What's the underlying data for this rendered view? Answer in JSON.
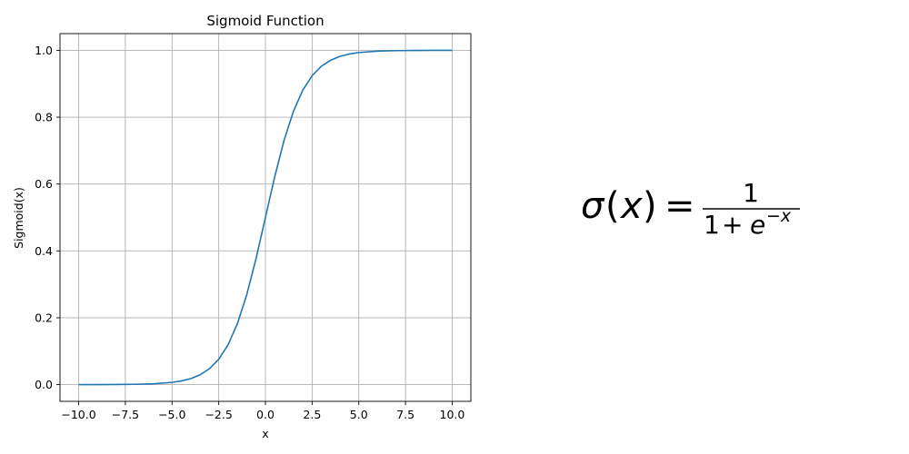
{
  "chart_data": {
    "type": "line",
    "title": "Sigmoid Function",
    "xlabel": "x",
    "ylabel": "Sigmoid(x)",
    "xlim": [
      -11,
      11
    ],
    "ylim": [
      -0.05,
      1.05
    ],
    "xticks": [
      -10,
      -7.5,
      -5,
      -2.5,
      0,
      2.5,
      5,
      7.5,
      10
    ],
    "xtick_labels": [
      "−10.0",
      "−7.5",
      "−5.0",
      "−2.5",
      "0.0",
      "2.5",
      "5.0",
      "7.5",
      "10.0"
    ],
    "yticks": [
      0,
      0.2,
      0.4,
      0.6,
      0.8,
      1.0
    ],
    "ytick_labels": [
      "0.0",
      "0.2",
      "0.4",
      "0.6",
      "0.8",
      "1.0"
    ],
    "grid": true,
    "line_color": "#1f77b4",
    "series": [
      {
        "x": [
          -10,
          -9,
          -8,
          -7,
          -6,
          -5,
          -4.5,
          -4,
          -3.5,
          -3,
          -2.5,
          -2,
          -1.5,
          -1,
          -0.5,
          0,
          0.5,
          1,
          1.5,
          2,
          2.5,
          3,
          3.5,
          4,
          4.5,
          5,
          6,
          7,
          8,
          9,
          10
        ],
        "y": [
          5e-05,
          0.00012,
          0.00034,
          0.00091,
          0.00247,
          0.00669,
          0.01099,
          0.01799,
          0.02931,
          0.04743,
          0.07586,
          0.1192,
          0.18243,
          0.26894,
          0.37754,
          0.5,
          0.62246,
          0.73106,
          0.81757,
          0.8808,
          0.92414,
          0.95257,
          0.97069,
          0.98201,
          0.98901,
          0.99331,
          0.99753,
          0.99909,
          0.99966,
          0.99988,
          0.99995
        ]
      }
    ]
  },
  "equation": {
    "sigma": "σ",
    "open_paren": "(",
    "x": "x",
    "close_paren": ")",
    "equals": "=",
    "numerator": "1",
    "denom_one": "1",
    "denom_plus": "+",
    "denom_e": "e",
    "exponent": "−x"
  }
}
